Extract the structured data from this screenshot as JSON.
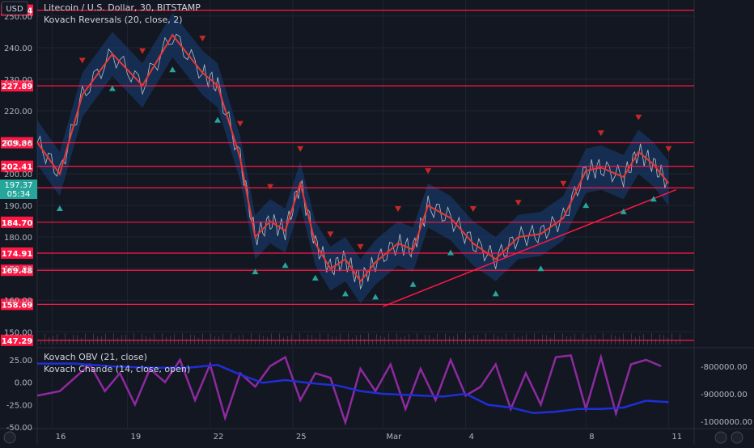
{
  "title": "Litecoin / U.S. Dollar, 30, BITSTAMP",
  "currency": "USD",
  "indicator_main": "Kovach Reversals (20, close, 2)",
  "indicator_obv": "Kovach OBV (21, close)",
  "indicator_chande": "Kovach Chande (14, close, open)",
  "current_price": "197.37",
  "countdown": "05:34",
  "colors": {
    "background": "#131722",
    "grid": "#1f2433",
    "axis_text": "#b2b5be",
    "price_line": "#d9d9d9",
    "ma_line": "#e53935",
    "band_fill": "#1a3f7a",
    "horizontal_level": "#ff1744",
    "up_marker": "#26a69a",
    "down_marker": "#c62828",
    "obv_line": "#1e2fd6",
    "chande_line": "#8e2aa0",
    "current_price_bg": "#26a69a"
  },
  "chart_data": [
    {
      "type": "line",
      "name": "price",
      "x_ticks": [
        "16",
        "19",
        "22",
        "25",
        "Mar",
        "4",
        "8",
        "11"
      ],
      "y_ticks": [
        "150.00",
        "160.00",
        "170.00",
        "180.00",
        "190.00",
        "200.00",
        "210.00",
        "220.00",
        "230.00",
        "240.00",
        "250.00"
      ],
      "ylim": [
        147,
        252
      ],
      "levels": [
        "251.84",
        "227.89",
        "209.86",
        "202.41",
        "195.59",
        "184.70",
        "174.91",
        "169.48",
        "158.69",
        "147.29"
      ],
      "close_path": [
        [
          0,
          210
        ],
        [
          3,
          200
        ],
        [
          6,
          225
        ],
        [
          10,
          238
        ],
        [
          14,
          228
        ],
        [
          18,
          244
        ],
        [
          22,
          232
        ],
        [
          24,
          228
        ],
        [
          27,
          205
        ],
        [
          29,
          180
        ],
        [
          31,
          185
        ],
        [
          33,
          182
        ],
        [
          35,
          197
        ],
        [
          37,
          178
        ],
        [
          39,
          170
        ],
        [
          41,
          173
        ],
        [
          43,
          166
        ],
        [
          45,
          172
        ],
        [
          48,
          178
        ],
        [
          50,
          176
        ],
        [
          52,
          190
        ],
        [
          55,
          186
        ],
        [
          58,
          178
        ],
        [
          61,
          173
        ],
        [
          64,
          180
        ],
        [
          67,
          181
        ],
        [
          70,
          186
        ],
        [
          73,
          201
        ],
        [
          75,
          202
        ],
        [
          78,
          199
        ],
        [
          80,
          207
        ],
        [
          82,
          203
        ],
        [
          84,
          197
        ]
      ],
      "trendline": [
        [
          46,
          158
        ],
        [
          85,
          195
        ]
      ]
    },
    {
      "type": "line",
      "name": "oscillators",
      "y_ticks_left": [
        "25.00",
        "0.00",
        "-25.00",
        "-50.00"
      ],
      "y_ticks_right": [
        "-800000.00",
        "-900000.00",
        "-1000000.00"
      ],
      "chande_path": [
        [
          0,
          -15
        ],
        [
          3,
          -10
        ],
        [
          5,
          5
        ],
        [
          7,
          20
        ],
        [
          9,
          -10
        ],
        [
          11,
          10
        ],
        [
          13,
          -25
        ],
        [
          15,
          15
        ],
        [
          17,
          0
        ],
        [
          19,
          25
        ],
        [
          21,
          -20
        ],
        [
          23,
          20
        ],
        [
          25,
          -40
        ],
        [
          27,
          10
        ],
        [
          29,
          -5
        ],
        [
          31,
          18
        ],
        [
          33,
          28
        ],
        [
          35,
          -20
        ],
        [
          37,
          10
        ],
        [
          39,
          5
        ],
        [
          41,
          -45
        ],
        [
          43,
          15
        ],
        [
          45,
          -10
        ],
        [
          47,
          20
        ],
        [
          49,
          -30
        ],
        [
          51,
          15
        ],
        [
          53,
          -20
        ],
        [
          55,
          25
        ],
        [
          57,
          -15
        ],
        [
          59,
          -5
        ],
        [
          61,
          20
        ],
        [
          63,
          -30
        ],
        [
          65,
          10
        ],
        [
          67,
          -25
        ],
        [
          69,
          28
        ],
        [
          71,
          30
        ],
        [
          73,
          -30
        ],
        [
          75,
          28
        ],
        [
          77,
          -35
        ],
        [
          79,
          20
        ],
        [
          81,
          25
        ],
        [
          83,
          18
        ]
      ],
      "obv_path": [
        [
          0,
          -790000
        ],
        [
          5,
          -790000
        ],
        [
          10,
          -800000
        ],
        [
          15,
          -805000
        ],
        [
          20,
          -805000
        ],
        [
          24,
          -795000
        ],
        [
          27,
          -830000
        ],
        [
          30,
          -860000
        ],
        [
          33,
          -850000
        ],
        [
          36,
          -860000
        ],
        [
          40,
          -870000
        ],
        [
          43,
          -890000
        ],
        [
          46,
          -900000
        ],
        [
          50,
          -905000
        ],
        [
          54,
          -910000
        ],
        [
          57,
          -900000
        ],
        [
          60,
          -940000
        ],
        [
          63,
          -950000
        ],
        [
          66,
          -970000
        ],
        [
          69,
          -965000
        ],
        [
          72,
          -955000
        ],
        [
          75,
          -955000
        ],
        [
          78,
          -950000
        ],
        [
          81,
          -925000
        ],
        [
          84,
          -930000
        ]
      ]
    }
  ]
}
